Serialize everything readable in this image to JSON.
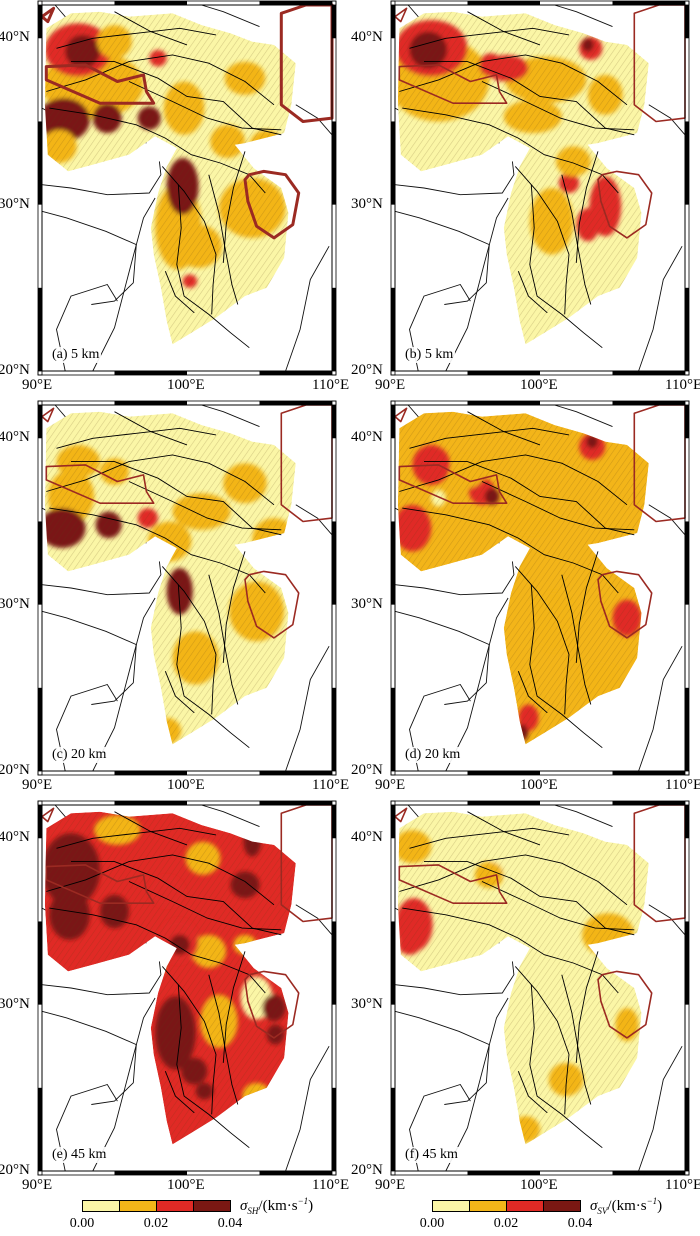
{
  "figure": {
    "panels": [
      {
        "id": "a",
        "label": "(a) 5 km"
      },
      {
        "id": "b",
        "label": "(b) 5 km"
      },
      {
        "id": "c",
        "label": "(c) 20 km"
      },
      {
        "id": "d",
        "label": "(d) 20 km"
      },
      {
        "id": "e",
        "label": "(e) 45 km"
      },
      {
        "id": "f",
        "label": "(f) 45 km"
      }
    ],
    "axes": {
      "lat_labels": [
        "40°N",
        "30°N",
        "20°N"
      ],
      "lon_labels": [
        "90°E",
        "100°E",
        "110°E"
      ],
      "lat_values": [
        40,
        30,
        20
      ],
      "lon_values": [
        90,
        100,
        110
      ],
      "lon_range": [
        90,
        110
      ],
      "lat_range": [
        20,
        42
      ]
    },
    "colors": {
      "level0": "#fbf6a6",
      "level1": "#f3b519",
      "level2": "#e02a25",
      "level3": "#7a1813",
      "block_outline": "#9b2a22",
      "fault_line": "#000000"
    },
    "legends": [
      {
        "symbol": "σ",
        "subscript": "SH",
        "unit": "/(km·s",
        "unit_sup": "−1",
        "unit_close": ")",
        "ticks": [
          "0.00",
          "0.02",
          "0.04"
        ]
      },
      {
        "symbol": "σ",
        "subscript": "SV",
        "unit": "/(km·s",
        "unit_sup": "−1",
        "unit_close": ")",
        "ticks": [
          "0.00",
          "0.02",
          "0.04"
        ]
      }
    ]
  }
}
